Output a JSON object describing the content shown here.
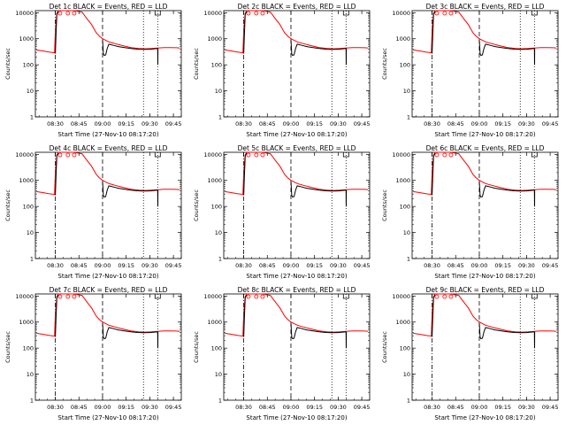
{
  "figure": {
    "ylabel": "Counts/sec",
    "xlabel": "Start Time (27-Nov-10 08:17:20)",
    "x_tick_labels": [
      "08:30",
      "08:45",
      "09:00",
      "09:15",
      "09:30",
      "09:45"
    ],
    "y_tick_labels": [
      "1",
      "10",
      "100",
      "1000",
      "10000"
    ],
    "colors": {
      "events": "#000000",
      "lld": "#ff0000",
      "background": "#ffffff"
    }
  },
  "chart_data": [
    {
      "type": "line",
      "title": "Det 1c BLACK = Events, RED = LLD"
    },
    {
      "type": "line",
      "title": "Det 2c BLACK = Events, RED = LLD"
    },
    {
      "type": "line",
      "title": "Det 3c BLACK = Events, RED = LLD"
    },
    {
      "type": "line",
      "title": "Det 4c BLACK = Events, RED = LLD"
    },
    {
      "type": "line",
      "title": "Det 5c BLACK = Events, RED = LLD"
    },
    {
      "type": "line",
      "title": "Det 6c BLACK = Events, RED = LLD"
    },
    {
      "type": "line",
      "title": "Det 7c BLACK = Events, RED = LLD"
    },
    {
      "type": "line",
      "title": "Det 8c BLACK = Events, RED = LLD"
    },
    {
      "type": "line",
      "title": "Det 9c BLACK = Events, RED = LLD"
    }
  ],
  "shared_series": {
    "x_axis_minutes_from_start_label": "Start Time (27-Nov-10 08:17:20)",
    "xlim": [
      "08:17:20",
      "09:50"
    ],
    "ylim": [
      1,
      12000
    ],
    "yscale": "log",
    "vlines": [
      {
        "time": "08:30",
        "style": "dash-dot"
      },
      {
        "time": "09:00",
        "style": "dashed"
      },
      {
        "time": "09:26",
        "style": "dotted"
      },
      {
        "time": "09:35",
        "style": "dotted"
      }
    ],
    "lld": {
      "name": "LLD",
      "points": [
        [
          "08:18",
          370
        ],
        [
          "08:22",
          340
        ],
        [
          "08:26",
          310
        ],
        [
          "08:29.5",
          290
        ],
        [
          "08:30",
          2200
        ],
        [
          "08:31",
          9500
        ],
        [
          "08:32",
          12000
        ],
        [
          "08:38",
          12000
        ],
        [
          "08:42",
          12000
        ],
        [
          "08:47",
          10500
        ],
        [
          "08:50",
          6000
        ],
        [
          "08:53",
          3500
        ],
        [
          "08:56",
          1700
        ],
        [
          "08:58",
          1250
        ],
        [
          "09:00",
          1000
        ],
        [
          "09:04",
          760
        ],
        [
          "09:08",
          650
        ],
        [
          "09:13",
          540
        ],
        [
          "09:18",
          460
        ],
        [
          "09:23",
          420
        ],
        [
          "09:27",
          410
        ],
        [
          "09:31",
          420
        ],
        [
          "09:35",
          440
        ],
        [
          "09:39",
          460
        ],
        [
          "09:43",
          460
        ],
        [
          "09:47",
          450
        ],
        [
          "09:49",
          440
        ]
      ]
    },
    "events": {
      "name": "Events",
      "points": [
        [
          "08:30",
          270
        ],
        [
          "08:30.5",
          1600
        ],
        [
          "08:31",
          9000
        ],
        [
          "08:32",
          11000
        ],
        [
          "09:00",
          900
        ],
        [
          "09:00.5",
          260
        ],
        [
          "09:01",
          230
        ],
        [
          "09:02",
          240
        ],
        [
          "09:03",
          430
        ],
        [
          "09:04",
          620
        ],
        [
          "09:07",
          560
        ],
        [
          "09:10",
          500
        ],
        [
          "09:14",
          460
        ],
        [
          "09:18",
          420
        ],
        [
          "09:22",
          400
        ],
        [
          "09:26",
          390
        ],
        [
          "09:30",
          395
        ],
        [
          "09:33",
          410
        ],
        [
          "09:35",
          420
        ],
        [
          "09:35.1",
          100
        ],
        [
          "09:35.2",
          420
        ]
      ]
    }
  }
}
